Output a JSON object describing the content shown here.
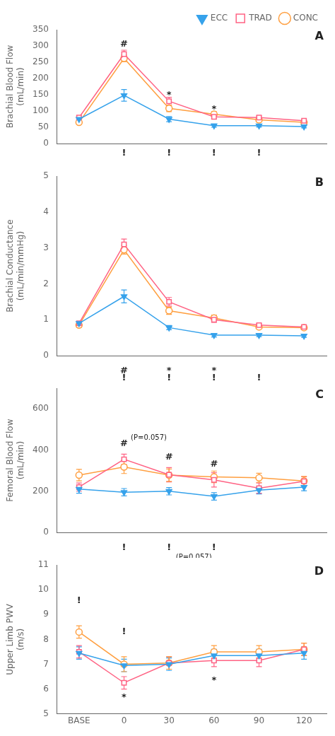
{
  "chart_data": [
    {
      "type": "line",
      "title": "A",
      "ylabel": "Brachial Blood Flow\n(mL/min)",
      "categories": [
        "BASE",
        "0",
        "30",
        "60",
        "90",
        "120"
      ],
      "ylim": [
        0,
        350
      ],
      "yticks": [
        0,
        50,
        100,
        150,
        200,
        250,
        300,
        350
      ],
      "grid": false,
      "tick_labels": "y",
      "legend": "upper right",
      "series": [
        {
          "name": "ECC",
          "marker": "triangle_down_filled",
          "values": [
            75,
            148,
            75,
            55,
            55,
            52
          ],
          "yerr": [
            5,
            18,
            8,
            5,
            4,
            4
          ]
        },
        {
          "name": "TRAD",
          "marker": "square_open",
          "values": [
            80,
            275,
            130,
            82,
            80,
            70
          ],
          "yerr": [
            5,
            12,
            12,
            6,
            5,
            4
          ]
        },
        {
          "name": "CONC",
          "marker": "circle_open",
          "values": [
            65,
            262,
            108,
            90,
            73,
            65
          ],
          "yerr": [
            5,
            10,
            10,
            8,
            5,
            4
          ]
        }
      ],
      "annotations": [
        {
          "text": "#",
          "x": 1,
          "y": 305
        },
        {
          "text": "*",
          "x": 2,
          "y": 148
        },
        {
          "text": "*",
          "x": 3,
          "y": 106
        },
        {
          "text": "!",
          "x": 1,
          "y": -30
        },
        {
          "text": "!",
          "x": 2,
          "y": -30
        },
        {
          "text": "!",
          "x": 3,
          "y": -30
        },
        {
          "text": "!",
          "x": 4,
          "y": -30
        }
      ]
    },
    {
      "type": "line",
      "title": "B",
      "ylabel": "Brachial Conductance\n(mL/min/mmHg)",
      "categories": [
        "BASE",
        "0",
        "30",
        "60",
        "90",
        "120"
      ],
      "ylim": [
        0,
        5
      ],
      "yticks": [
        0,
        1,
        2,
        3,
        4,
        5
      ],
      "grid": false,
      "tick_labels": "y",
      "series": [
        {
          "name": "ECC",
          "marker": "triangle_down_filled",
          "values": [
            0.9,
            1.65,
            0.78,
            0.57,
            0.57,
            0.55
          ],
          "yerr": [
            0.06,
            0.18,
            0.06,
            0.05,
            0.04,
            0.04
          ]
        },
        {
          "name": "TRAD",
          "marker": "square_open",
          "values": [
            0.9,
            3.1,
            1.5,
            1.0,
            0.85,
            0.8
          ],
          "yerr": [
            0.06,
            0.15,
            0.12,
            0.07,
            0.05,
            0.05
          ]
        },
        {
          "name": "CONC",
          "marker": "circle_open",
          "values": [
            0.85,
            2.95,
            1.25,
            1.05,
            0.8,
            0.78
          ],
          "yerr": [
            0.06,
            0.12,
            0.1,
            0.08,
            0.05,
            0.05
          ]
        }
      ],
      "annotations": [
        {
          "text": "#",
          "x": 1,
          "y": -0.42
        },
        {
          "text": "*",
          "x": 2,
          "y": -0.42
        },
        {
          "text": "*",
          "x": 3,
          "y": -0.42
        },
        {
          "text": "!",
          "x": 1,
          "y": -0.62
        },
        {
          "text": "!",
          "x": 2,
          "y": -0.62
        },
        {
          "text": "!",
          "x": 3,
          "y": -0.62
        },
        {
          "text": "!",
          "x": 4,
          "y": -0.62
        }
      ]
    },
    {
      "type": "line",
      "title": "C",
      "ylabel": "Femoral Blood Flow\n(mL/min)",
      "categories": [
        "BASE",
        "0",
        "30",
        "60",
        "90",
        "120"
      ],
      "ylim": [
        0,
        700
      ],
      "yticks": [
        0,
        200,
        400,
        600
      ],
      "grid": false,
      "tick_labels": "y",
      "series": [
        {
          "name": "ECC",
          "marker": "triangle_down_filled",
          "values": [
            210,
            195,
            200,
            175,
            205,
            220
          ],
          "yerr": [
            20,
            18,
            18,
            18,
            18,
            18
          ]
        },
        {
          "name": "TRAD",
          "marker": "square_open",
          "values": [
            220,
            355,
            280,
            255,
            215,
            248
          ],
          "yerr": [
            20,
            25,
            35,
            35,
            25,
            22
          ]
        },
        {
          "name": "CONC",
          "marker": "circle_open",
          "values": [
            278,
            318,
            278,
            270,
            265,
            250
          ],
          "yerr": [
            28,
            32,
            30,
            28,
            22,
            22
          ]
        }
      ],
      "annotations": [
        {
          "text": "#",
          "x": 1,
          "y": 430
        },
        {
          "text": "(P=0.057)",
          "x": 1.55,
          "y": 460
        },
        {
          "text": "#",
          "x": 2,
          "y": 365
        },
        {
          "text": "#",
          "x": 3,
          "y": 330
        },
        {
          "text": "!",
          "x": 1,
          "y": -75
        },
        {
          "text": "!",
          "x": 2,
          "y": -75
        },
        {
          "text": "(P=0.057)",
          "x": 2.55,
          "y": -120
        },
        {
          "text": "!",
          "x": 3,
          "y": -75
        }
      ]
    },
    {
      "type": "line",
      "title": "D",
      "ylabel": "Upper Limb PWV\n(m/s)",
      "categories": [
        "BASE",
        "0",
        "30",
        "60",
        "90",
        "120"
      ],
      "ylim": [
        5,
        11
      ],
      "yticks": [
        5,
        6,
        7,
        8,
        9,
        10,
        11
      ],
      "grid": false,
      "series": [
        {
          "name": "ECC",
          "marker": "triangle_down_filled",
          "values": [
            7.45,
            6.95,
            7.0,
            7.35,
            7.35,
            7.45
          ],
          "yerr": [
            0.25,
            0.25,
            0.25,
            0.25,
            0.25,
            0.25
          ]
        },
        {
          "name": "TRAD",
          "marker": "square_open",
          "values": [
            7.5,
            6.25,
            7.05,
            7.15,
            7.15,
            7.6
          ],
          "yerr": [
            0.25,
            0.25,
            0.25,
            0.25,
            0.25,
            0.25
          ]
        },
        {
          "name": "CONC",
          "marker": "circle_open",
          "values": [
            8.3,
            7.0,
            7.05,
            7.5,
            7.5,
            7.6
          ],
          "yerr": [
            0.25,
            0.3,
            0.25,
            0.25,
            0.25,
            0.25
          ]
        }
      ],
      "annotations": [
        {
          "text": "!",
          "x": 0,
          "y": 9.55
        },
        {
          "text": "!",
          "x": 1,
          "y": 8.3
        },
        {
          "text": "*",
          "x": 1,
          "y": 5.65
        },
        {
          "text": "*",
          "x": 3,
          "y": 6.35
        }
      ]
    }
  ]
}
